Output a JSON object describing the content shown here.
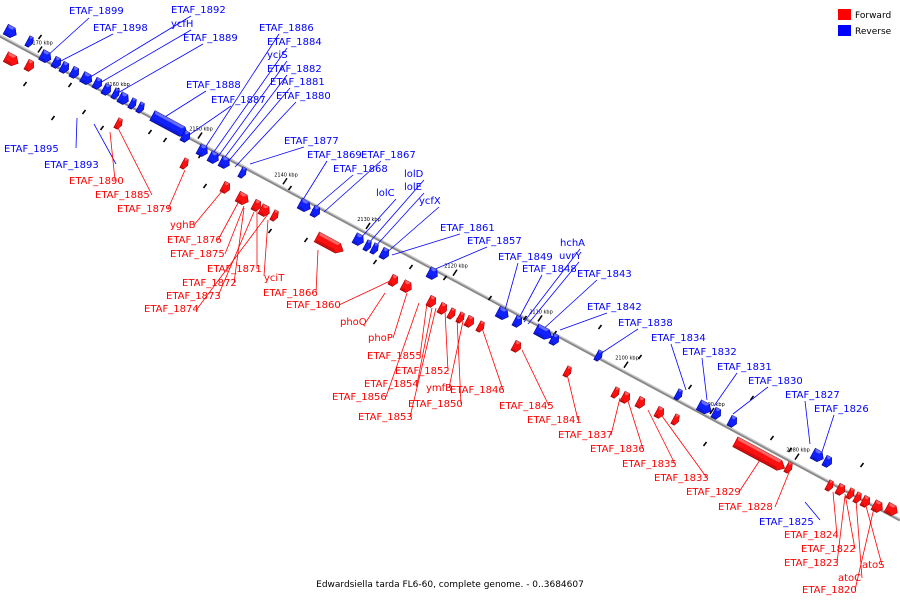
{
  "legend": {
    "forward_label": "Forward",
    "reverse_label": "Reverse",
    "forward_color": "#ff0000",
    "reverse_color": "#0000ff"
  },
  "caption": "Edwardsiella tarda FL6-60, complete genome. - 0..3684607",
  "ticks": [
    "2170 kbp",
    "2160 kbp",
    "2150 kbp",
    "2140 kbp",
    "2130 kbp",
    "2120 kbp",
    "2110 kbp",
    "2100 kbp",
    "2090 kbp",
    "2080 kbp"
  ],
  "reverse_labels": [
    "ETAF_1899",
    "ETAF_1898",
    "ETAF_1892",
    "ycfH",
    "ETAF_1889",
    "ETAF_1886",
    "ETAF_1884",
    "yciS",
    "ETAF_1882",
    "ETAF_1881",
    "ETAF_1880",
    "ETAF_1888",
    "ETAF_1887",
    "ETAF_1895",
    "ETAF_1893",
    "ETAF_1877",
    "ETAF_1869",
    "ETAF_1867",
    "ETAF_1868",
    "lolD",
    "lolC",
    "lolE",
    "ycfX",
    "ETAF_1861",
    "ETAF_1857",
    "hchA",
    "uvrY",
    "ETAF_1849",
    "ETAF_1848",
    "ETAF_1843",
    "ETAF_1842",
    "ETAF_1838",
    "ETAF_1834",
    "ETAF_1832",
    "ETAF_1831",
    "ETAF_1830",
    "ETAF_1827",
    "ETAF_1826",
    "ETAF_1825"
  ],
  "forward_labels": [
    "ETAF_1890",
    "ETAF_1885",
    "ETAF_1879",
    "yghB",
    "ETAF_1876",
    "ETAF_1875",
    "ETAF_1871",
    "yciT",
    "ETAF_1872",
    "ETAF_1873",
    "ETAF_1866",
    "ETAF_1874",
    "ETAF_1860",
    "phoQ",
    "phoP",
    "ETAF_1855",
    "ETAF_1852",
    "ETAF_1854",
    "ymfB",
    "ETAF_1846",
    "ETAF_1856",
    "ETAF_1850",
    "ETAF_1845",
    "ETAF_1853",
    "ETAF_1841",
    "ETAF_1837",
    "ETAF_1836",
    "ETAF_1835",
    "ETAF_1833",
    "ETAF_1829",
    "ETAF_1828",
    "ETAF_1824",
    "ETAF_1822",
    "ETAF_1823",
    "atoS",
    "atoC",
    "ETAF_1820"
  ]
}
